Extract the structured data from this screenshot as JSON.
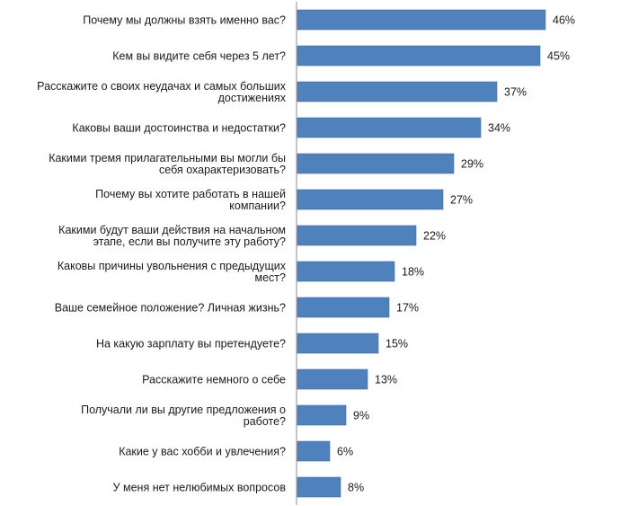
{
  "chart_data": {
    "type": "bar",
    "orientation": "horizontal",
    "title": "",
    "xlabel": "",
    "ylabel": "",
    "xlim": [
      0,
      50
    ],
    "grid": false,
    "legend": "none",
    "bar_color": "#4f81bd",
    "categories": [
      "Почему мы должны взять именно вас?",
      "Кем вы видите себя через  5 лет?",
      "Расскажите о своих неудачах и самых больших достижениях",
      "Каковы ваши достоинства и недостатки?",
      "Какими тремя прилагательными вы могли бы себя охарактеризовать?",
      "Почему вы хотите работать в нашей компании?",
      "Какими будут ваши действия на начальном этапе, если вы получите эту работу?",
      "Каковы причины увольнения с предыдущих мест?",
      "Ваше семейное положение? Личная жизнь?",
      "На какую зарплату вы претендуете?",
      "Расскажите немного о себе",
      "Получали ли вы другие предложения о работе?",
      "Какие у вас хобби и увлечения?",
      "У меня нет нелюбимых вопросов"
    ],
    "category_lines": [
      [
        "Почему мы должны взять именно вас?"
      ],
      [
        "Кем вы видите себя через  5 лет?"
      ],
      [
        "Расскажите о своих неудачах и самых больших",
        "достижениях"
      ],
      [
        "Каковы ваши достоинства и недостатки?"
      ],
      [
        "Какими тремя прилагательными вы могли бы",
        "себя охарактеризовать?"
      ],
      [
        "Почему вы хотите работать в нашей",
        "компании?"
      ],
      [
        "Какими будут ваши действия на начальном",
        "этапе, если вы получите эту работу?"
      ],
      [
        "Каковы причины увольнения с предыдущих",
        "мест?"
      ],
      [
        "Ваше семейное положение? Личная жизнь?"
      ],
      [
        "На какую зарплату вы претендуете?"
      ],
      [
        "Расскажите немного о себе"
      ],
      [
        "Получали ли вы другие предложения о",
        "работе?"
      ],
      [
        "Какие у вас хобби и увлечения?"
      ],
      [
        "У меня нет нелюбимых вопросов"
      ]
    ],
    "values": [
      46,
      45,
      37,
      34,
      29,
      27,
      22,
      18,
      17,
      15,
      13,
      9,
      6,
      8
    ],
    "value_labels": [
      "46%",
      "45%",
      "37%",
      "34%",
      "29%",
      "27%",
      "22%",
      "18%",
      "17%",
      "15%",
      "13%",
      "9%",
      "6%",
      "8%"
    ]
  }
}
